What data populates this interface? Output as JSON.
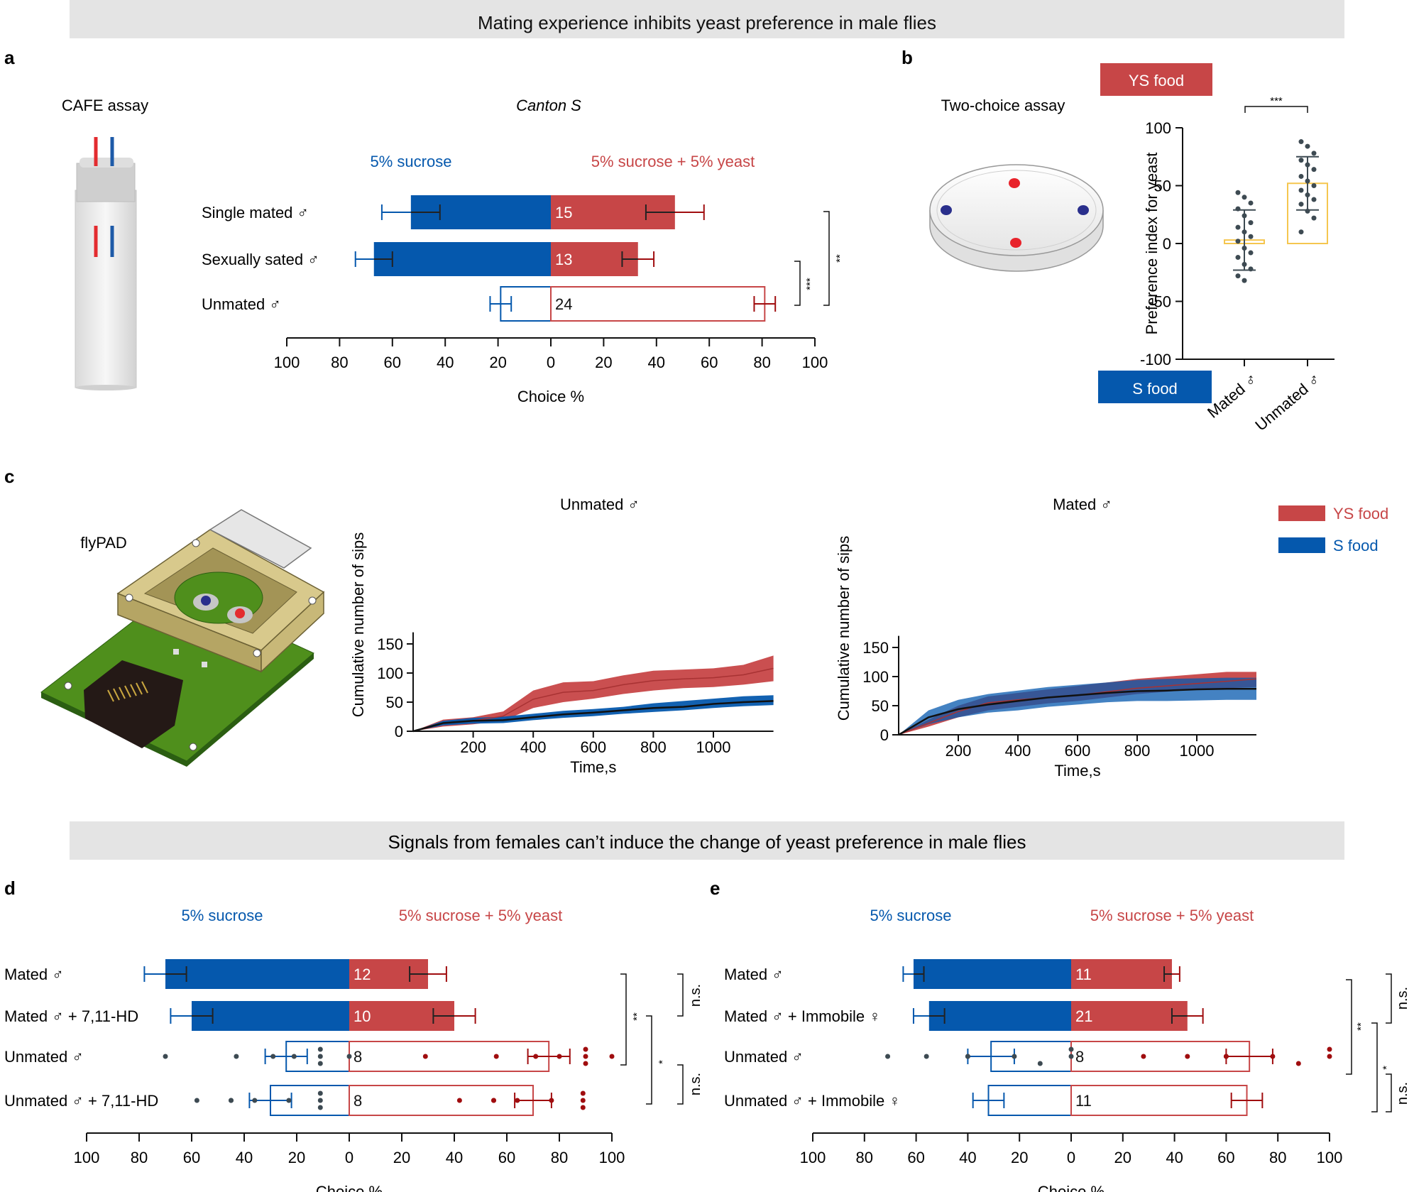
{
  "banners": {
    "top": "Mating experience inhibits yeast preference in male flies",
    "bottom": "Signals from females can’t induce the change of yeast preference in male flies"
  },
  "colors": {
    "blue": "#0558ad",
    "red": "#c74647",
    "dark_red": "#a00d0f",
    "yellow": "#f5c64f",
    "dot": "#3d4a52",
    "banner": "#e4e4e4"
  },
  "panels": {
    "a": {
      "letter": "a",
      "assay_label": "CAFE assay",
      "strain_label": "Canton S",
      "legend_left": "5% sucrose",
      "legend_right": "5% sucrose + 5% yeast",
      "sig_inner": "***",
      "sig_outer": "**"
    },
    "b": {
      "letter": "b",
      "assay_label": "Two-choice assay",
      "ys_box": "YS food",
      "s_box": "S food",
      "sig": "***"
    },
    "c": {
      "letter": "c",
      "device_label": "flyPAD",
      "legend_ys": "YS food",
      "legend_s": "S food"
    },
    "d": {
      "letter": "d",
      "legend_left": "5% sucrose",
      "legend_right": "5% sucrose + 5% yeast",
      "sig_top_right": "n.s.",
      "sig_outer": "**",
      "sig_mid": "*",
      "sig_bottom_right": "n.s."
    },
    "e": {
      "letter": "e",
      "legend_left": "5% sucrose",
      "legend_right": "5% sucrose + 5% yeast",
      "sig_top_right": "n.s.",
      "sig_outer": "**",
      "sig_mid": "*",
      "sig_bottom_right": "n.s."
    }
  },
  "chart_data": [
    {
      "id": "a",
      "type": "bar",
      "orientation": "diverging-horizontal",
      "title": "Canton S",
      "xlabel": "Choice %",
      "xlim": [
        -100,
        100
      ],
      "ticks": [
        100,
        80,
        60,
        40,
        20,
        0,
        20,
        40,
        60,
        80,
        100
      ],
      "categories": [
        "Single mated ♂",
        "Sexually sated ♂",
        "Unmated ♂"
      ],
      "n": [
        15,
        13,
        24
      ],
      "series": [
        {
          "name": "5% sucrose",
          "values": [
            53,
            67,
            19
          ],
          "errors": [
            11,
            7,
            4
          ]
        },
        {
          "name": "5% sucrose + 5% yeast",
          "values": [
            47,
            33,
            81
          ],
          "errors": [
            11,
            6,
            4
          ]
        }
      ],
      "filled": [
        true,
        true,
        false
      ]
    },
    {
      "id": "b",
      "type": "scatter",
      "title": "",
      "ylabel": "Preference index for yeast",
      "ylim": [
        -100,
        100
      ],
      "yticks": [
        100,
        50,
        0,
        -50,
        -100
      ],
      "categories": [
        "Mated ♂",
        "Unmated ♂"
      ],
      "means": [
        3,
        52
      ],
      "sd": [
        26,
        23
      ],
      "points": [
        [
          44,
          40,
          35,
          30,
          24,
          18,
          14,
          10,
          6,
          2,
          -4,
          -8,
          -12,
          -18,
          -22,
          -28,
          -32
        ],
        [
          88,
          84,
          78,
          72,
          68,
          64,
          58,
          54,
          50,
          46,
          42,
          38,
          34,
          28,
          22,
          10
        ]
      ]
    },
    {
      "id": "c-unmated",
      "type": "line",
      "title": "Unmated ♂",
      "xlabel": "Time,s",
      "ylabel": "Cumulative number of sips",
      "xlim": [
        0,
        1200
      ],
      "ylim": [
        0,
        170
      ],
      "xticks": [
        200,
        400,
        600,
        800,
        1000
      ],
      "yticks": [
        0,
        50,
        100,
        150
      ],
      "x": [
        0,
        100,
        200,
        300,
        400,
        500,
        600,
        700,
        800,
        900,
        1000,
        1100,
        1200
      ],
      "series": [
        {
          "name": "YS food",
          "values": [
            0,
            14,
            18,
            26,
            55,
            67,
            70,
            80,
            87,
            90,
            92,
            97,
            108
          ],
          "lower": [
            0,
            8,
            12,
            18,
            40,
            50,
            56,
            64,
            70,
            74,
            76,
            80,
            86
          ],
          "upper": [
            0,
            20,
            24,
            34,
            70,
            84,
            86,
            96,
            104,
            106,
            108,
            114,
            130
          ]
        },
        {
          "name": "S food",
          "values": [
            0,
            14,
            18,
            19,
            24,
            29,
            32,
            36,
            40,
            42,
            47,
            50,
            52
          ],
          "lower": [
            0,
            10,
            13,
            14,
            19,
            23,
            26,
            30,
            33,
            36,
            40,
            43,
            45
          ],
          "upper": [
            0,
            18,
            23,
            25,
            30,
            35,
            38,
            42,
            48,
            52,
            56,
            60,
            62
          ]
        }
      ]
    },
    {
      "id": "c-mated",
      "type": "line",
      "title": "Mated ♂",
      "xlabel": "Time,s",
      "ylabel": "Cumulative number of sips",
      "xlim": [
        0,
        1200
      ],
      "ylim": [
        0,
        170
      ],
      "xticks": [
        200,
        400,
        600,
        800,
        1000
      ],
      "yticks": [
        0,
        50,
        100,
        150
      ],
      "x": [
        0,
        100,
        200,
        300,
        400,
        500,
        600,
        700,
        800,
        900,
        1000,
        1100,
        1200
      ],
      "series": [
        {
          "name": "YS food",
          "values": [
            0,
            20,
            40,
            55,
            60,
            64,
            68,
            74,
            80,
            84,
            88,
            92,
            96
          ],
          "lower": [
            0,
            14,
            30,
            42,
            48,
            54,
            58,
            64,
            70,
            74,
            78,
            80,
            82
          ],
          "upper": [
            0,
            26,
            50,
            66,
            72,
            78,
            84,
            90,
            96,
            100,
            104,
            108,
            108
          ]
        },
        {
          "name": "S food",
          "values": [
            0,
            30,
            44,
            52,
            58,
            64,
            68,
            72,
            75,
            76,
            78,
            79,
            79
          ],
          "lower": [
            0,
            18,
            30,
            38,
            42,
            48,
            52,
            56,
            58,
            58,
            59,
            60,
            60
          ],
          "upper": [
            0,
            42,
            60,
            70,
            76,
            82,
            86,
            90,
            94,
            96,
            97,
            98,
            98
          ]
        }
      ]
    },
    {
      "id": "d",
      "type": "bar",
      "orientation": "diverging-horizontal",
      "xlabel": "Choice %",
      "xlim": [
        -100,
        100
      ],
      "ticks": [
        100,
        80,
        60,
        40,
        20,
        0,
        20,
        40,
        60,
        80,
        100
      ],
      "categories": [
        "Mated ♂",
        "Mated ♂ + 7,11-HD",
        "Unmated ♂",
        "Unmated ♂ + 7,11-HD"
      ],
      "n": [
        12,
        10,
        8,
        8
      ],
      "series": [
        {
          "name": "5% sucrose",
          "values": [
            70,
            60,
            24,
            30
          ],
          "errors": [
            8,
            8,
            8,
            8
          ]
        },
        {
          "name": "5% sucrose + 5% yeast",
          "values": [
            30,
            40,
            76,
            70
          ],
          "errors": [
            7,
            8,
            8,
            7
          ]
        }
      ],
      "filled": [
        true,
        true,
        false,
        false
      ],
      "points_left": [
        [],
        [],
        [
          70,
          43,
          29,
          21,
          11,
          11,
          11,
          0
        ],
        [
          58,
          45,
          45,
          36,
          23,
          11,
          11,
          11
        ]
      ],
      "points_right": [
        [],
        [],
        [
          29,
          56,
          71,
          80,
          90,
          90,
          90,
          100
        ],
        [
          42,
          55,
          55,
          64,
          77,
          89,
          89,
          89
        ]
      ]
    },
    {
      "id": "e",
      "type": "bar",
      "orientation": "diverging-horizontal",
      "xlabel": "Choice %",
      "xlim": [
        -100,
        100
      ],
      "ticks": [
        100,
        80,
        60,
        40,
        20,
        0,
        20,
        40,
        60,
        80,
        100
      ],
      "categories": [
        "Mated ♂",
        "Mated ♂ + Immobile ♀",
        "Unmated ♂",
        "Unmated ♂ + Immobile ♀"
      ],
      "n": [
        11,
        21,
        8,
        11
      ],
      "series": [
        {
          "name": "5% sucrose",
          "values": [
            61,
            55,
            31,
            32
          ],
          "errors": [
            4,
            6,
            9,
            6
          ]
        },
        {
          "name": "5% sucrose + 5% yeast",
          "values": [
            39,
            45,
            69,
            68
          ],
          "errors": [
            3,
            6,
            9,
            6
          ]
        }
      ],
      "filled": [
        true,
        true,
        false,
        false
      ],
      "points_left": [
        [],
        [],
        [
          71,
          56,
          40,
          40,
          22,
          12,
          0,
          0
        ],
        []
      ],
      "points_right": [
        [],
        [],
        [
          28,
          45,
          60,
          60,
          78,
          88,
          100,
          100
        ],
        []
      ]
    }
  ]
}
